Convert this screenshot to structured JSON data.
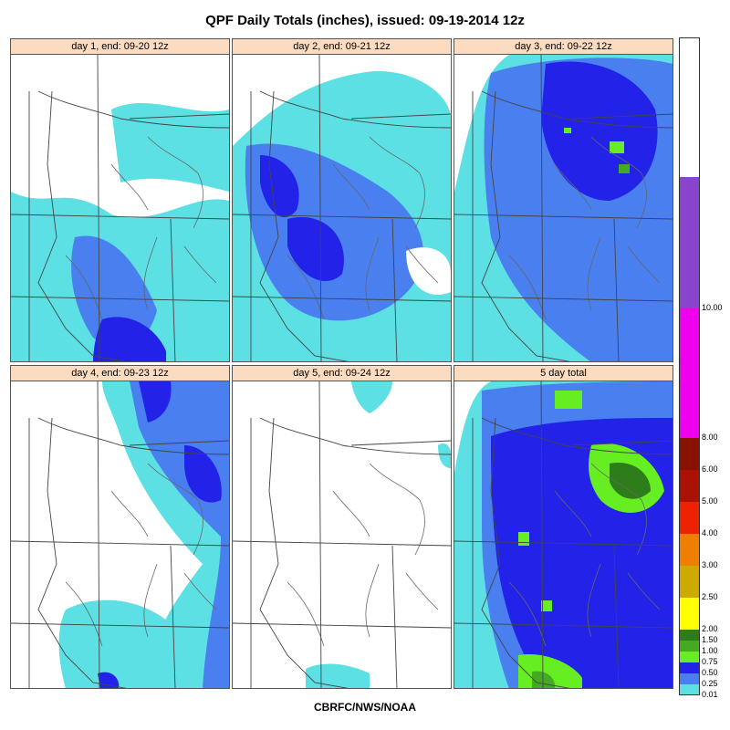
{
  "title": "QPF Daily Totals (inches),  issued: 09-19-2014 12z",
  "credit": "CBRFC/NWS/NOAA",
  "panels": [
    {
      "label": "day 1, end: 09-20 12z",
      "coverage": "light"
    },
    {
      "label": "day 2, end: 09-21 12z",
      "coverage": "moderate"
    },
    {
      "label": "day 3, end: 09-22 12z",
      "coverage": "heavy"
    },
    {
      "label": "day 4, end: 09-23 12z",
      "coverage": "east-only"
    },
    {
      "label": "day 5, end: 09-24 12z",
      "coverage": "minimal"
    },
    {
      "label": "5 day total",
      "coverage": "total"
    }
  ],
  "legend": {
    "bins": [
      {
        "from": "0.01",
        "to": "0.25",
        "color": "#5de0e3"
      },
      {
        "from": "0.25",
        "to": "0.50",
        "color": "#4a7ff0"
      },
      {
        "from": "0.50",
        "to": "0.75",
        "color": "#2222e8"
      },
      {
        "from": "0.75",
        "to": "1.00",
        "color": "#66ee22"
      },
      {
        "from": "1.00",
        "to": "1.50",
        "color": "#44aa22"
      },
      {
        "from": "1.50",
        "to": "2.00",
        "color": "#2e7d1b"
      },
      {
        "from": "2.00",
        "to": "2.50",
        "color": "#ffff00"
      },
      {
        "from": "2.50",
        "to": "3.00",
        "color": "#ccaa00"
      },
      {
        "from": "3.00",
        "to": "4.00",
        "color": "#ee7f00"
      },
      {
        "from": "4.00",
        "to": "5.00",
        "color": "#ee2200"
      },
      {
        "from": "5.00",
        "to": "6.00",
        "color": "#aa1100"
      },
      {
        "from": "6.00",
        "to": "8.00",
        "color": "#881100"
      },
      {
        "from": "8.00",
        "to": "10.00",
        "color": "#ee00ee"
      },
      {
        "from": "10.00",
        "to": "",
        "color": "#8844cc"
      }
    ],
    "ticks": [
      "0.01",
      "0.25",
      "0.50",
      "0.75",
      "1.00",
      "1.50",
      "2.00",
      "2.50",
      "3.00",
      "4.00",
      "5.00",
      "6.00",
      "8.00",
      "10.00"
    ]
  }
}
